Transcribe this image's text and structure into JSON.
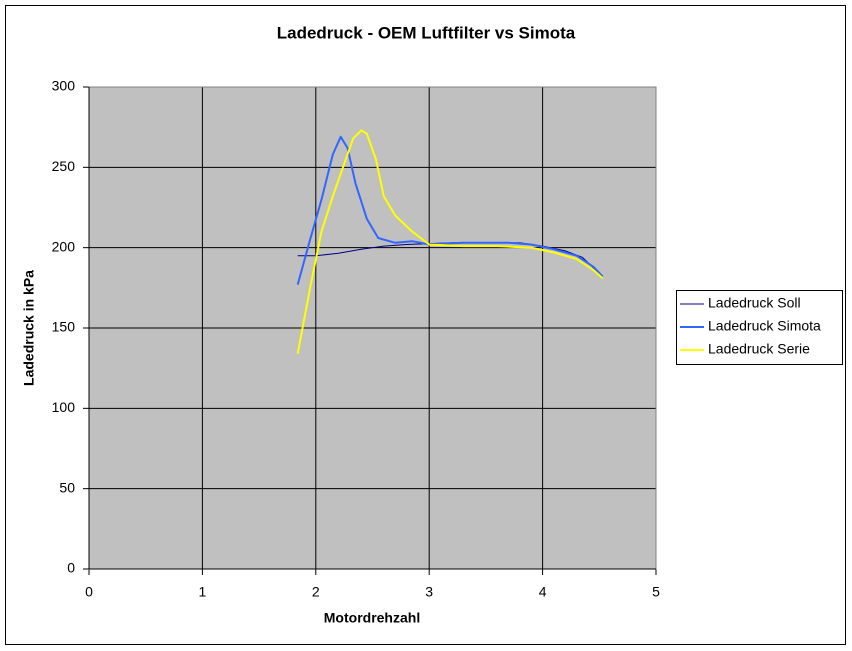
{
  "chart_data": {
    "type": "line",
    "title": "Ladedruck - OEM Luftfilter vs Simota",
    "xlabel": "Motordrehzahl",
    "ylabel": "Ladedruck in kPa",
    "xlim": [
      0,
      5
    ],
    "xticks": [
      0,
      1,
      2,
      3,
      4,
      5
    ],
    "ylim": [
      0,
      300
    ],
    "yticks": [
      0,
      50,
      100,
      150,
      200,
      250,
      300
    ],
    "grid": true,
    "legend": "right",
    "series": [
      {
        "name": "Ladedruck Soll",
        "color": "#000080",
        "x": [
          1.84,
          2.0,
          2.2,
          2.4,
          2.6,
          2.8,
          3.0,
          3.2,
          3.5,
          3.8,
          4.0,
          4.2,
          4.35,
          4.5,
          4.53
        ],
        "values": [
          195,
          195,
          196.5,
          199,
          201,
          202,
          202.5,
          203,
          203,
          203,
          201,
          198,
          194,
          184,
          182
        ]
      },
      {
        "name": "Ladedruck Simota",
        "color": "#3366ff",
        "x": [
          1.84,
          1.95,
          2.05,
          2.15,
          2.22,
          2.28,
          2.35,
          2.45,
          2.55,
          2.7,
          2.85,
          3.0,
          3.3,
          3.7,
          3.9,
          4.1,
          4.3,
          4.45,
          4.53
        ],
        "values": [
          177,
          205,
          230,
          258,
          269,
          262,
          240,
          218,
          206,
          203,
          204,
          202,
          203,
          203,
          202,
          199,
          195,
          188,
          182
        ]
      },
      {
        "name": "Ladedruck Serie",
        "color": "#ffff00",
        "x": [
          1.84,
          1.95,
          2.05,
          2.15,
          2.25,
          2.33,
          2.4,
          2.45,
          2.53,
          2.6,
          2.7,
          2.85,
          3.0,
          3.3,
          3.6,
          3.9,
          4.1,
          4.3,
          4.45,
          4.53
        ],
        "values": [
          134,
          175,
          210,
          232,
          252,
          268,
          273,
          271,
          255,
          232,
          220,
          210,
          202,
          201,
          201,
          200,
          197,
          193,
          186,
          181
        ]
      }
    ]
  }
}
